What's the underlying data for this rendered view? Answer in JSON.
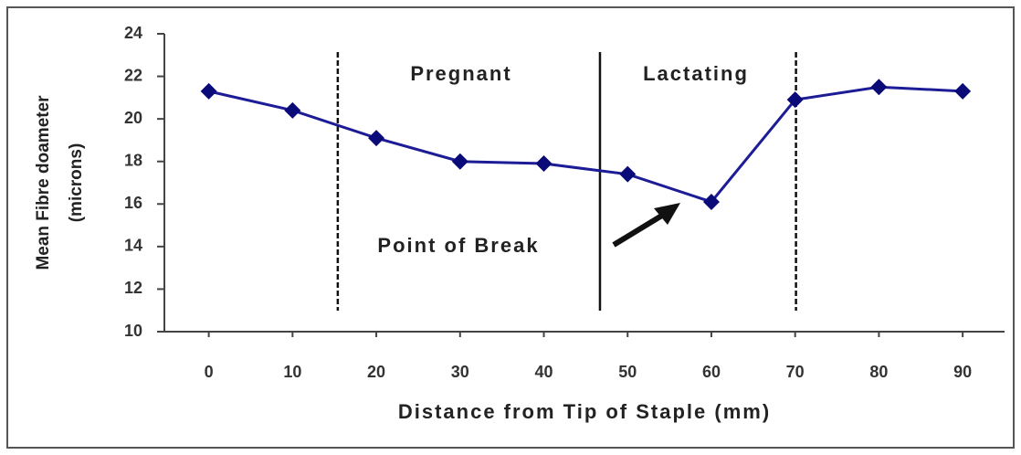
{
  "chart_data": {
    "type": "line",
    "xlabel": "Distance from Tip of Staple (mm)",
    "ylabel": [
      "Mean Fibre doameter",
      "(microns)"
    ],
    "x": [
      0,
      10,
      20,
      30,
      40,
      50,
      60,
      70,
      80,
      90
    ],
    "series": [
      {
        "name": "Mean fibre diameter",
        "color": "#1c1c96",
        "values": [
          21.3,
          20.4,
          19.1,
          18.0,
          17.9,
          17.4,
          16.1,
          20.9,
          21.5,
          21.3
        ]
      }
    ],
    "xlim": [
      -5.3,
      95
    ],
    "xticks": [
      0,
      10,
      20,
      30,
      40,
      50,
      60,
      70,
      80,
      90
    ],
    "ylim": [
      10,
      24
    ],
    "yticks": [
      10,
      12,
      14,
      16,
      18,
      20,
      22,
      24
    ],
    "legend": false,
    "vlines": [
      {
        "x": 15.4,
        "style": "dashed"
      },
      {
        "x": 46.7,
        "style": "solid"
      },
      {
        "x": 70.1,
        "style": "dashed"
      }
    ],
    "annotations": [
      "Pregnant",
      "Lactating",
      "Point of Break"
    ]
  }
}
